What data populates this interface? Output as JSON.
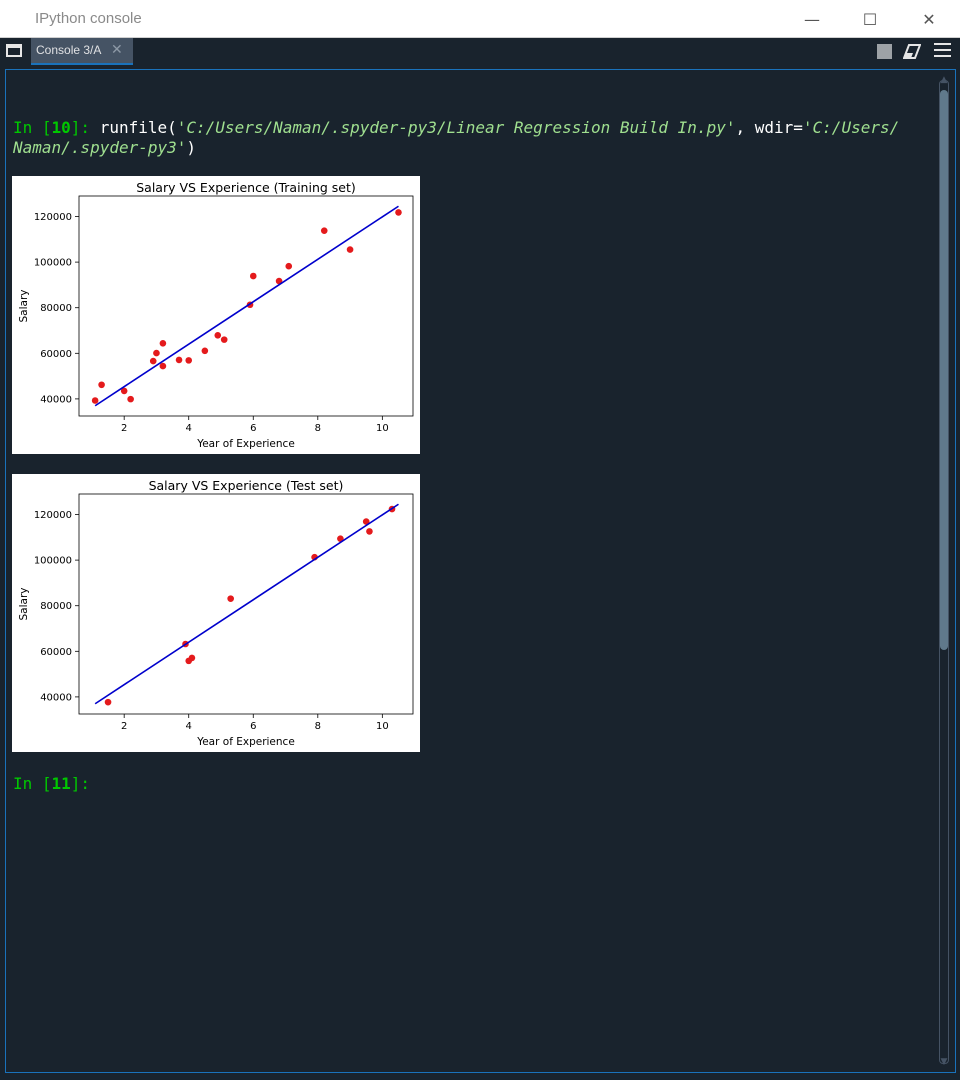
{
  "window": {
    "title": "IPython console",
    "minimize": "—",
    "maximize": "☐",
    "close": "✕"
  },
  "tabs": [
    {
      "label": "Console 3/A",
      "close": "✕"
    }
  ],
  "toolbar": {
    "stop_icon": "stop-icon",
    "clear_icon": "eraser-icon",
    "menu_icon": "hamburger-menu-icon"
  },
  "console": {
    "in_10_prefix": "In [",
    "in_10_num": "10",
    "in_10_suffix": "]: ",
    "cmd_func": "runfile(",
    "cmd_arg1": "'C:/Users/Naman/.spyder-py3/Linear Regression Build In.py'",
    "cmd_mid": ", wdir=",
    "cmd_arg2_part1": "'C:/Users/",
    "cmd_arg2_part2": "Naman/.spyder-py3'",
    "cmd_close": ")",
    "in_11_prefix": "In [",
    "in_11_num": "11",
    "in_11_suffix": "]:"
  },
  "colors": {
    "background": "#19232d",
    "prompt": "#00c800",
    "string": "#9fdf8f",
    "accent": "#1a72bb",
    "points": "#e41a1c",
    "line": "#0000cc"
  },
  "chart_data": [
    {
      "type": "scatter",
      "title": "Salary VS Experience (Training set)",
      "xlabel": "Year of Experience",
      "ylabel": "Salary",
      "xlim": [
        0.6,
        10.95
      ],
      "ylim": [
        32500,
        129000
      ],
      "xticks": [
        2,
        4,
        6,
        8,
        10
      ],
      "yticks": [
        40000,
        60000,
        80000,
        100000,
        120000
      ],
      "points": [
        [
          1.1,
          39300
        ],
        [
          1.3,
          46200
        ],
        [
          2.0,
          43500
        ],
        [
          2.2,
          39900
        ],
        [
          2.9,
          56600
        ],
        [
          3.0,
          60100
        ],
        [
          3.2,
          54400
        ],
        [
          3.2,
          64400
        ],
        [
          3.7,
          57100
        ],
        [
          4.0,
          56900
        ],
        [
          4.5,
          61100
        ],
        [
          4.9,
          67900
        ],
        [
          5.1,
          66000
        ],
        [
          5.9,
          81300
        ],
        [
          6.0,
          93900
        ],
        [
          6.8,
          91700
        ],
        [
          7.1,
          98200
        ],
        [
          8.2,
          113800
        ],
        [
          9.0,
          105500
        ],
        [
          10.5,
          121800
        ]
      ],
      "regression_line": [
        [
          1.1,
          37000
        ],
        [
          10.5,
          124500
        ]
      ]
    },
    {
      "type": "scatter",
      "title": "Salary VS Experience (Test set)",
      "xlabel": "Year of Experience",
      "ylabel": "Salary",
      "xlim": [
        0.6,
        10.95
      ],
      "ylim": [
        32500,
        129000
      ],
      "xticks": [
        2,
        4,
        6,
        8,
        10
      ],
      "yticks": [
        40000,
        60000,
        80000,
        100000,
        120000
      ],
      "points": [
        [
          1.5,
          37700
        ],
        [
          3.9,
          63200
        ],
        [
          4.0,
          55800
        ],
        [
          4.1,
          57100
        ],
        [
          5.3,
          83100
        ],
        [
          7.9,
          101300
        ],
        [
          8.7,
          109400
        ],
        [
          9.5,
          116900
        ],
        [
          9.6,
          112600
        ],
        [
          10.3,
          122400
        ]
      ],
      "regression_line": [
        [
          1.1,
          37000
        ],
        [
          10.5,
          124500
        ]
      ]
    }
  ]
}
